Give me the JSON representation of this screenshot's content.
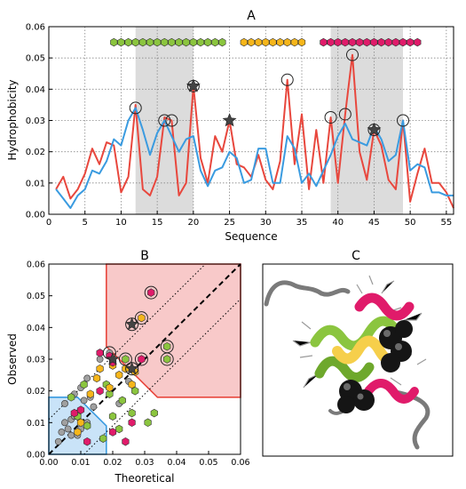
{
  "panels": {
    "a": {
      "label": "A"
    },
    "b": {
      "label": "B"
    },
    "c": {
      "label": "C"
    }
  },
  "colors": {
    "line_theoretical": "#e8473d",
    "line_observed": "#3a9be0",
    "shade": "#dcdcdc",
    "hex_green": "#8bc53f",
    "hex_yellow": "#f6b61b",
    "hex_pink": "#e01b6a",
    "dot_gray": "#a0a0a0",
    "region_red": "#f8c9c9",
    "region_red_edge": "#e8473d",
    "region_blue": "#c9e3f8",
    "region_blue_edge": "#3a9be0",
    "star": "#444444",
    "ribbon_black": "#111111",
    "ribbon_gray": "#8a8a8a"
  },
  "chart_data": [
    {
      "type": "line",
      "title": "A",
      "xlabel": "Sequence",
      "ylabel": "Hydrophobicity",
      "xlim": [
        0,
        56
      ],
      "ylim": [
        0,
        0.06
      ],
      "xticks": [
        0,
        5,
        10,
        15,
        20,
        25,
        30,
        35,
        40,
        45,
        50,
        55
      ],
      "yticks": [
        0.0,
        0.01,
        0.02,
        0.03,
        0.04,
        0.05,
        0.06
      ],
      "grid": true,
      "shaded_ranges": [
        [
          12,
          20
        ],
        [
          39,
          49
        ]
      ],
      "helix_bars": [
        {
          "color": "green",
          "from": 9,
          "to": 24,
          "y": 0.055
        },
        {
          "color": "yellow",
          "from": 27,
          "to": 35,
          "y": 0.055
        },
        {
          "color": "pink",
          "from": 38,
          "to": 51,
          "y": 0.055
        }
      ],
      "x": [
        1,
        2,
        3,
        4,
        5,
        6,
        7,
        8,
        9,
        10,
        11,
        12,
        13,
        14,
        15,
        16,
        17,
        18,
        19,
        20,
        21,
        22,
        23,
        24,
        25,
        26,
        27,
        28,
        29,
        30,
        31,
        32,
        33,
        34,
        35,
        36,
        37,
        38,
        39,
        40,
        41,
        42,
        43,
        44,
        45,
        46,
        47,
        48,
        49,
        50,
        51,
        52,
        53,
        54,
        55,
        56
      ],
      "series": [
        {
          "color": "red",
          "values": [
            0.008,
            0.012,
            0.005,
            0.008,
            0.013,
            0.021,
            0.016,
            0.023,
            0.022,
            0.007,
            0.012,
            0.035,
            0.008,
            0.006,
            0.012,
            0.031,
            0.03,
            0.006,
            0.01,
            0.041,
            0.018,
            0.01,
            0.025,
            0.02,
            0.03,
            0.016,
            0.015,
            0.012,
            0.019,
            0.011,
            0.008,
            0.017,
            0.043,
            0.016,
            0.032,
            0.008,
            0.027,
            0.01,
            0.031,
            0.01,
            0.032,
            0.051,
            0.02,
            0.011,
            0.027,
            0.022,
            0.011,
            0.008,
            0.03,
            0.004,
            0.013,
            0.021,
            0.01,
            0.01,
            0.007,
            0.002
          ]
        },
        {
          "color": "blue",
          "values": [
            0.008,
            0.005,
            0.002,
            0.006,
            0.008,
            0.014,
            0.013,
            0.017,
            0.024,
            0.022,
            0.03,
            0.034,
            0.027,
            0.019,
            0.026,
            0.03,
            0.025,
            0.02,
            0.024,
            0.025,
            0.014,
            0.009,
            0.014,
            0.015,
            0.02,
            0.018,
            0.01,
            0.011,
            0.021,
            0.021,
            0.01,
            0.01,
            0.025,
            0.021,
            0.01,
            0.013,
            0.009,
            0.014,
            0.019,
            0.025,
            0.029,
            0.024,
            0.023,
            0.022,
            0.028,
            0.024,
            0.017,
            0.019,
            0.03,
            0.014,
            0.016,
            0.015,
            0.007,
            0.007,
            0.006,
            0.006
          ]
        }
      ],
      "circled_points": [
        [
          12,
          0.034
        ],
        [
          16,
          0.03
        ],
        [
          17,
          0.03
        ],
        [
          20,
          0.041
        ],
        [
          33,
          0.043
        ],
        [
          39,
          0.031
        ],
        [
          41,
          0.032
        ],
        [
          42,
          0.051
        ],
        [
          45,
          0.027
        ],
        [
          49,
          0.03
        ]
      ],
      "star_points": [
        [
          20,
          0.041
        ],
        [
          25,
          0.03
        ],
        [
          45,
          0.027
        ]
      ]
    },
    {
      "type": "scatter",
      "title": "B",
      "xlabel": "Theoretical",
      "ylabel": "Observed",
      "xlim": [
        0,
        0.06
      ],
      "ylim": [
        0,
        0.06
      ],
      "xticks": [
        0.0,
        0.01,
        0.02,
        0.03,
        0.04,
        0.05,
        0.06
      ],
      "yticks": [
        0.0,
        0.01,
        0.02,
        0.03,
        0.04,
        0.05,
        0.06
      ],
      "grid": false,
      "lines": [
        {
          "style": "dashed",
          "slope": 1,
          "intercept": 0
        },
        {
          "style": "dotted",
          "slope": 1,
          "intercept": 0.011
        },
        {
          "style": "dotted",
          "slope": 1,
          "intercept": -0.011
        }
      ],
      "regions": [
        {
          "color": "red",
          "polygon": [
            [
              0.018,
              0.06
            ],
            [
              0.018,
              0.034
            ],
            [
              0.026,
              0.026
            ],
            [
              0.034,
              0.018
            ],
            [
              0.06,
              0.018
            ],
            [
              0.06,
              0.06
            ]
          ]
        },
        {
          "color": "blue",
          "polygon": [
            [
              0,
              0
            ],
            [
              0,
              0.018
            ],
            [
              0.009,
              0.018
            ],
            [
              0.018,
              0.009
            ],
            [
              0.018,
              0
            ]
          ]
        }
      ],
      "points": [
        {
          "group": "gray",
          "xy": [
            [
              0.003,
              0.004
            ],
            [
              0.004,
              0.007
            ],
            [
              0.005,
              0.01
            ],
            [
              0.005,
              0.016
            ],
            [
              0.006,
              0.008
            ],
            [
              0.007,
              0.006
            ],
            [
              0.007,
              0.011
            ],
            [
              0.008,
              0.012
            ],
            [
              0.008,
              0.019
            ],
            [
              0.009,
              0.006
            ],
            [
              0.009,
              0.013
            ],
            [
              0.01,
              0.008
            ],
            [
              0.01,
              0.021
            ],
            [
              0.011,
              0.017
            ],
            [
              0.012,
              0.01
            ],
            [
              0.012,
              0.024
            ],
            [
              0.013,
              0.018
            ],
            [
              0.014,
              0.015
            ],
            [
              0.016,
              0.03
            ],
            [
              0.022,
              0.016
            ],
            [
              0.019,
              0.032
            ],
            [
              0.025,
              0.023
            ]
          ]
        },
        {
          "group": "green",
          "xy": [
            [
              0.007,
              0.018
            ],
            [
              0.009,
              0.012
            ],
            [
              0.011,
              0.022
            ],
            [
              0.012,
              0.009
            ],
            [
              0.017,
              0.005
            ],
            [
              0.018,
              0.022
            ],
            [
              0.019,
              0.019
            ],
            [
              0.02,
              0.012
            ],
            [
              0.022,
              0.008
            ],
            [
              0.023,
              0.017
            ],
            [
              0.026,
              0.013
            ],
            [
              0.027,
              0.02
            ],
            [
              0.024,
              0.03
            ],
            [
              0.031,
              0.01
            ],
            [
              0.033,
              0.013
            ],
            [
              0.037,
              0.03
            ],
            [
              0.037,
              0.034
            ]
          ]
        },
        {
          "group": "yellow",
          "xy": [
            [
              0.009,
              0.007
            ],
            [
              0.01,
              0.01
            ],
            [
              0.013,
              0.019
            ],
            [
              0.015,
              0.024
            ],
            [
              0.016,
              0.027
            ],
            [
              0.019,
              0.021
            ],
            [
              0.02,
              0.028
            ],
            [
              0.022,
              0.025
            ],
            [
              0.024,
              0.027
            ],
            [
              0.026,
              0.022
            ],
            [
              0.027,
              0.026
            ],
            [
              0.029,
              0.043
            ]
          ]
        },
        {
          "group": "pink",
          "xy": [
            [
              0.008,
              0.013
            ],
            [
              0.01,
              0.014
            ],
            [
              0.012,
              0.004
            ],
            [
              0.016,
              0.02
            ],
            [
              0.019,
              0.031
            ],
            [
              0.02,
              0.007
            ],
            [
              0.02,
              0.029
            ],
            [
              0.024,
              0.004
            ],
            [
              0.026,
              0.01
            ],
            [
              0.029,
              0.03
            ],
            [
              0.032,
              0.051
            ],
            [
              0.016,
              0.032
            ]
          ]
        }
      ],
      "circled_points": [
        [
          0.019,
          0.032
        ],
        [
          0.024,
          0.03
        ],
        [
          0.026,
          0.041
        ],
        [
          0.029,
          0.043
        ],
        [
          0.029,
          0.03
        ],
        [
          0.026,
          0.027
        ],
        [
          0.032,
          0.051
        ],
        [
          0.037,
          0.03
        ],
        [
          0.037,
          0.034
        ]
      ],
      "star_points": [
        [
          0.02,
          0.03
        ],
        [
          0.026,
          0.041
        ],
        [
          0.026,
          0.027
        ]
      ]
    }
  ]
}
